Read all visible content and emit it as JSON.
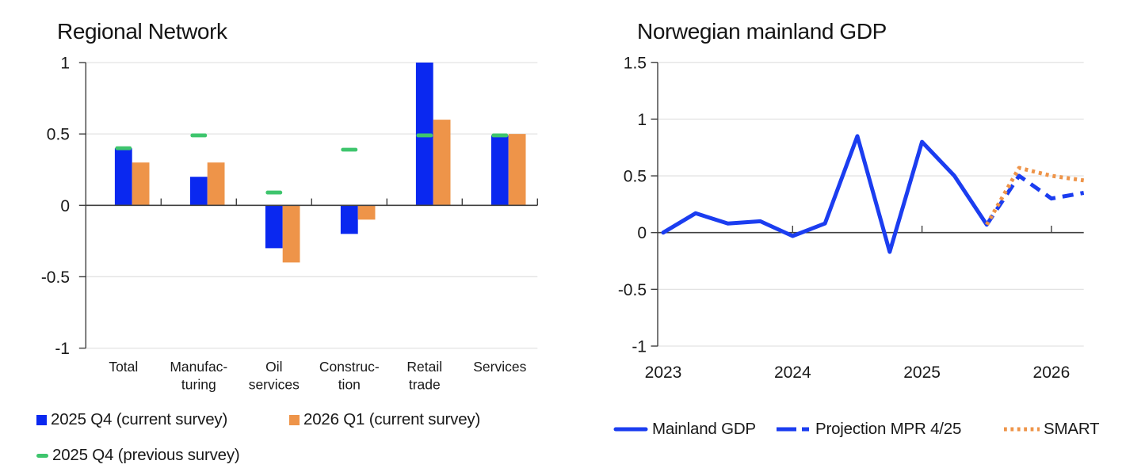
{
  "page": {
    "background": "#ffffff"
  },
  "colors": {
    "bar_blue": "#0a28f0",
    "bar_orange": "#ee9449",
    "dash_green": "#3ec56d",
    "line_blue": "#1b3df0",
    "line_orange": "#ee9449",
    "axis": "#3f3f3f",
    "grid": "#e3e3e3",
    "text": "#191919"
  },
  "chart_data": [
    {
      "id": "regional-network",
      "type": "bar",
      "title": "Regional Network",
      "ylim": [
        -1,
        1
      ],
      "grid": "horizontal",
      "legend_position": "bottom",
      "yticks": [
        {
          "label": "1",
          "v": 1
        },
        {
          "label": "0.5",
          "v": 0.5
        },
        {
          "label": "0",
          "v": 0
        },
        {
          "label": "-0.5",
          "v": -0.5
        },
        {
          "label": "-1",
          "v": -1
        }
      ],
      "categories": [
        [
          "Total"
        ],
        [
          "Manufac-",
          "turing"
        ],
        [
          "Oil",
          "services"
        ],
        [
          "Construc-",
          "tion"
        ],
        [
          "Retail",
          "trade"
        ],
        [
          "Services"
        ]
      ],
      "series": [
        {
          "name": "2025 Q4 (current survey)",
          "kind": "bar",
          "color_key": "bar_blue",
          "values": [
            0.4,
            0.2,
            -0.3,
            -0.2,
            1.0,
            0.49
          ]
        },
        {
          "name": "2026 Q1 (current survey)",
          "kind": "bar",
          "color_key": "bar_orange",
          "values": [
            0.3,
            0.3,
            -0.4,
            -0.1,
            0.6,
            0.5
          ]
        },
        {
          "name": "2025 Q4 (previous survey)",
          "kind": "dash-marker",
          "color_key": "dash_green",
          "values": [
            0.4,
            0.49,
            0.09,
            0.39,
            0.49,
            0.49
          ]
        }
      ]
    },
    {
      "id": "mainland-gdp",
      "type": "line",
      "title": "Norwegian mainland GDP",
      "ylim": [
        -1,
        1.5
      ],
      "xlim": [
        2022.96,
        2026.25
      ],
      "grid": "horizontal",
      "legend_position": "bottom",
      "yticks": [
        {
          "label": "1.5",
          "v": 1.5
        },
        {
          "label": "1",
          "v": 1
        },
        {
          "label": "0.5",
          "v": 0.5
        },
        {
          "label": "0",
          "v": 0
        },
        {
          "label": "-0.5",
          "v": -0.5
        },
        {
          "label": "-1",
          "v": -1
        }
      ],
      "xticks": [
        {
          "label": "2023",
          "v": 2023
        },
        {
          "label": "2024",
          "v": 2024
        },
        {
          "label": "2025",
          "v": 2025
        },
        {
          "label": "2026",
          "v": 2026
        }
      ],
      "series": [
        {
          "name": "Mainland GDP",
          "style": "solid",
          "color_key": "line_blue",
          "x": [
            2023.0,
            2023.25,
            2023.5,
            2023.75,
            2024.0,
            2024.25,
            2024.5,
            2024.75,
            2025.0,
            2025.25,
            2025.5
          ],
          "values": [
            0.0,
            0.17,
            0.08,
            0.1,
            -0.03,
            0.08,
            0.85,
            -0.17,
            0.8,
            0.5,
            0.07
          ]
        },
        {
          "name": "Projection MPR 4/25",
          "style": "dashed",
          "color_key": "line_blue",
          "x": [
            2025.5,
            2025.75,
            2026.0,
            2026.25
          ],
          "values": [
            0.07,
            0.5,
            0.3,
            0.35
          ]
        },
        {
          "name": "SMART",
          "style": "dotted",
          "color_key": "line_orange",
          "x": [
            2025.5,
            2025.75,
            2026.0,
            2026.25
          ],
          "values": [
            0.07,
            0.57,
            0.5,
            0.46
          ]
        }
      ]
    }
  ]
}
